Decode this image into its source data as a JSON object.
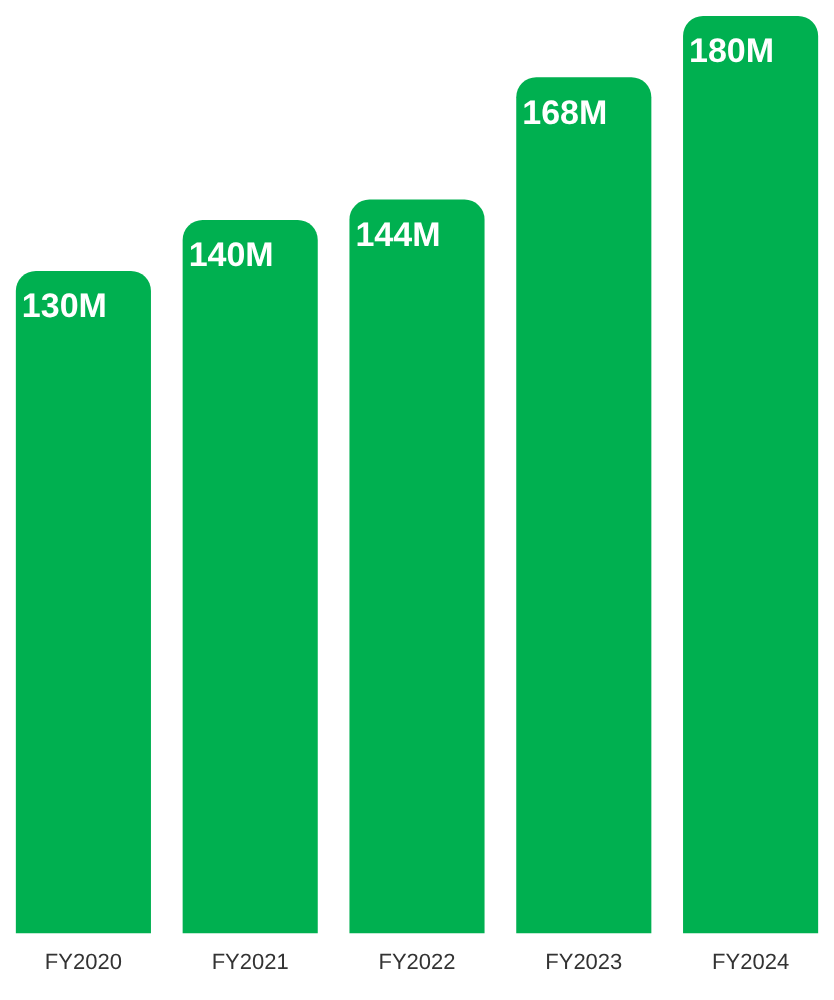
{
  "chart_data": {
    "type": "bar",
    "categories": [
      "FY2020",
      "FY2021",
      "FY2022",
      "FY2023",
      "FY2024"
    ],
    "values": [
      130,
      140,
      144,
      168,
      180
    ],
    "value_labels": [
      "130M",
      "140M",
      "144M",
      "168M",
      "180M"
    ],
    "color": "#00b050",
    "grid": false,
    "legend": false
  }
}
